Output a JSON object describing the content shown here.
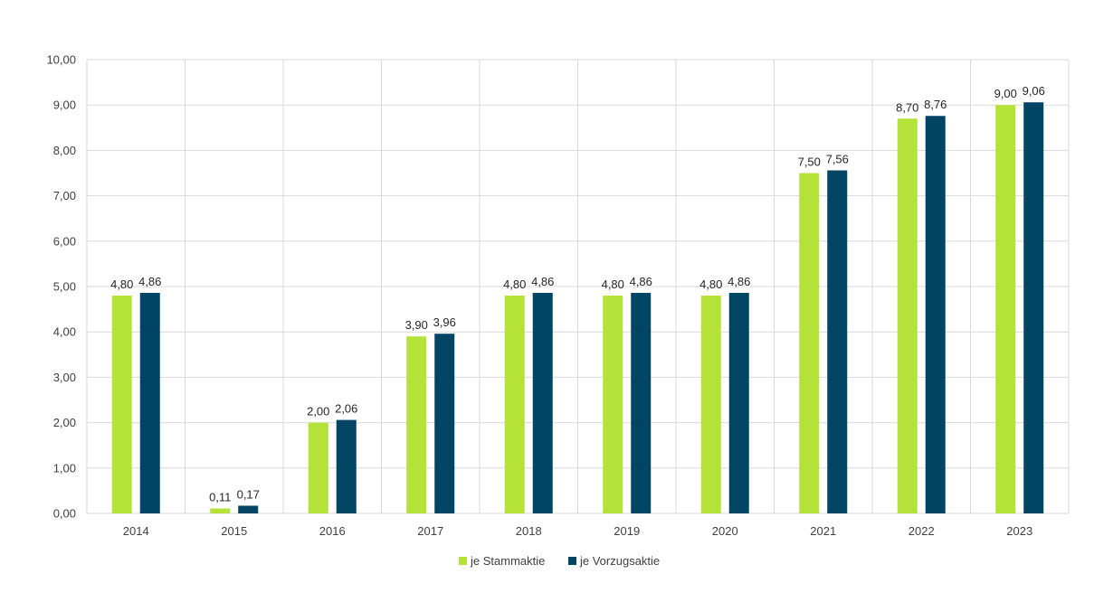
{
  "chart_data": {
    "type": "bar",
    "categories": [
      "2014",
      "2015",
      "2016",
      "2017",
      "2018",
      "2019",
      "2020",
      "2021",
      "2022",
      "2023"
    ],
    "series": [
      {
        "name": "je Stammaktie",
        "color": "#b5e238",
        "values": [
          4.8,
          0.11,
          2.0,
          3.9,
          4.8,
          4.8,
          4.8,
          7.5,
          8.7,
          9.0
        ],
        "labels": [
          "4,80",
          "0,11",
          "2,00",
          "3,90",
          "4,80",
          "4,80",
          "4,80",
          "7,50",
          "8,70",
          "9,00"
        ]
      },
      {
        "name": "je Vorzugsaktie",
        "color": "#004563",
        "values": [
          4.86,
          0.17,
          2.06,
          3.96,
          4.86,
          4.86,
          4.86,
          7.56,
          8.76,
          9.06
        ],
        "labels": [
          "4,86",
          "0,17",
          "2,06",
          "3,96",
          "4,86",
          "4,86",
          "4,86",
          "7,56",
          "8,76",
          "9,06"
        ]
      }
    ],
    "ylim": [
      0,
      10
    ],
    "yticks": [
      "0,00",
      "1,00",
      "2,00",
      "3,00",
      "4,00",
      "5,00",
      "6,00",
      "7,00",
      "8,00",
      "9,00",
      "10,00"
    ],
    "grid": true,
    "legend_position": "bottom",
    "title": "",
    "xlabel": "",
    "ylabel": ""
  }
}
